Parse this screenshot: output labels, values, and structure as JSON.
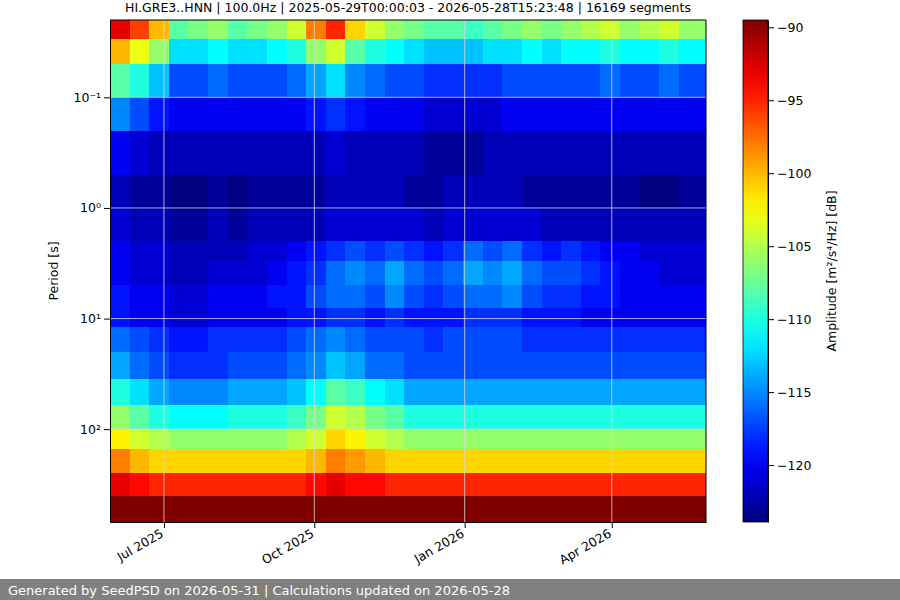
{
  "chart_data": {
    "type": "heatmap",
    "title": "HI.GRE3..HNN | 100.0Hz | 2025-05-29T00:00:03 - 2026-05-28T15:23:48 | 16169 segments",
    "y_label": "Period [s]",
    "colorbar_label": "Amplitude [m²/s⁴/Hz] [dB]",
    "footer": "Generated by SeedPSD on 2026-05-31 | Calculations updated on 2026-05-28",
    "log": "y",
    "grid": true,
    "xlim": [
      "2025-05-29T00:00:03",
      "2026-05-28T15:23:48"
    ],
    "xticks": [
      {
        "value": "2025-07-01",
        "label": "Jul 2025"
      },
      {
        "value": "2025-10-01",
        "label": "Oct 2025"
      },
      {
        "value": "2026-01-01",
        "label": "Jan 2026"
      },
      {
        "value": "2026-04-01",
        "label": "Apr 2026"
      }
    ],
    "ylim": [
      0.02,
      690
    ],
    "yticks": [
      {
        "value": 0.1,
        "label": "10⁻¹"
      },
      {
        "value": 1,
        "label": "10⁰"
      },
      {
        "value": 10,
        "label": "10¹"
      },
      {
        "value": 100,
        "label": "10²"
      }
    ],
    "clim": [
      -123.9,
      -89.5
    ],
    "cticks": [
      {
        "value": -120,
        "label": "−120"
      },
      {
        "value": -115,
        "label": "−115"
      },
      {
        "value": -110,
        "label": "−110"
      },
      {
        "value": -105,
        "label": "−105"
      },
      {
        "value": -100,
        "label": "−100"
      },
      {
        "value": -95,
        "label": "−95"
      },
      {
        "value": -90,
        "label": "−90"
      }
    ],
    "x_edges": [
      "2025-05-29T00:00:03",
      "2025-06-10",
      "2025-06-22",
      "2025-07-04",
      "2025-07-16",
      "2025-07-28",
      "2025-08-09",
      "2025-08-21",
      "2025-09-02",
      "2025-09-14",
      "2025-09-26",
      "2025-10-08",
      "2025-10-20",
      "2025-11-01",
      "2025-11-13",
      "2025-11-25",
      "2025-12-07",
      "2025-12-19",
      "2025-12-31",
      "2026-01-12",
      "2026-01-24",
      "2026-02-05",
      "2026-02-17",
      "2026-03-01",
      "2026-03-13",
      "2026-03-25",
      "2026-04-06",
      "2026-04-18",
      "2026-04-30",
      "2026-05-12",
      "2026-05-28T15:23:48"
    ],
    "y_edges": [
      0.02,
      0.03,
      0.05,
      0.1,
      0.2,
      0.5,
      1,
      2,
      3,
      5,
      8,
      12,
      20,
      35,
      60,
      100,
      150,
      250,
      400,
      690
    ],
    "cells": [
      [
        -93,
        -96,
        -100,
        -108,
        -107,
        -106,
        -108,
        -107,
        -106,
        -104,
        -98,
        -95,
        -101,
        -104,
        -106,
        -107,
        -108,
        -108,
        -109,
        -108,
        -107,
        -106,
        -107,
        -106,
        -105,
        -104,
        -106,
        -105,
        -104,
        -106
      ],
      [
        -100,
        -103,
        -106,
        -112,
        -112,
        -111,
        -112,
        -112,
        -111,
        -110,
        -106,
        -104,
        -108,
        -110,
        -111,
        -112,
        -113,
        -113,
        -113,
        -112,
        -112,
        -111,
        -112,
        -111,
        -111,
        -110,
        -111,
        -111,
        -110,
        -111
      ],
      [
        -108,
        -110,
        -113,
        -117,
        -117,
        -116,
        -117,
        -117,
        -117,
        -116,
        -114,
        -112,
        -115,
        -116,
        -117,
        -117,
        -118,
        -118,
        -118,
        -118,
        -117,
        -117,
        -117,
        -117,
        -117,
        -116,
        -117,
        -117,
        -116,
        -117
      ],
      [
        -115,
        -117,
        -119,
        -120,
        -120,
        -120,
        -120,
        -120,
        -120,
        -120,
        -119,
        -118,
        -119,
        -120,
        -120,
        -120,
        -121,
        -121,
        -121,
        -121,
        -120,
        -120,
        -120,
        -120,
        -120,
        -120,
        -120,
        -120,
        -120,
        -120
      ],
      [
        -120,
        -121,
        -122,
        -122,
        -122,
        -122,
        -122,
        -122,
        -122,
        -122,
        -122,
        -121,
        -122,
        -122,
        -122,
        -122,
        -123,
        -123,
        -123,
        -122,
        -122,
        -122,
        -122,
        -122,
        -122,
        -122,
        -122,
        -122,
        -122,
        -122
      ],
      [
        -122,
        -123,
        -123,
        -124,
        -124,
        -123,
        -124,
        -123,
        -123,
        -123,
        -123,
        -122,
        -122,
        -122,
        -122,
        -123,
        -123,
        -122,
        -122,
        -122,
        -122,
        -123,
        -123,
        -123,
        -123,
        -123,
        -123,
        -124,
        -124,
        -123
      ],
      [
        -121,
        -122,
        -122,
        -123,
        -123,
        -122,
        -123,
        -122,
        -122,
        -122,
        -122,
        -121,
        -121,
        -121,
        -121,
        -121,
        -122,
        -121,
        -121,
        -121,
        -121,
        -121,
        -122,
        -122,
        -122,
        -122,
        -122,
        -122,
        -122,
        -122
      ],
      [
        -120,
        -121,
        -121,
        -122,
        -122,
        -122,
        -122,
        -121,
        -121,
        -120,
        -119,
        -118,
        -117,
        -118,
        -117,
        -118,
        -119,
        -118,
        -116,
        -117,
        -116,
        -118,
        -119,
        -118,
        -119,
        -120,
        -120,
        -121,
        -121,
        -121
      ],
      [
        -120,
        -121,
        -121,
        -122,
        -122,
        -121,
        -121,
        -121,
        -120,
        -119,
        -118,
        -116,
        -115,
        -116,
        -114,
        -116,
        -117,
        -116,
        -114,
        -115,
        -114,
        -116,
        -117,
        -117,
        -118,
        -119,
        -120,
        -120,
        -121,
        -121
      ],
      [
        -119,
        -120,
        -120,
        -121,
        -121,
        -120,
        -120,
        -120,
        -119,
        -119,
        -117,
        -116,
        -116,
        -117,
        -115,
        -117,
        -118,
        -117,
        -116,
        -116,
        -115,
        -117,
        -118,
        -118,
        -119,
        -119,
        -120,
        -120,
        -120,
        -120
      ],
      [
        -119,
        -120,
        -120,
        -121,
        -121,
        -120,
        -120,
        -120,
        -120,
        -119,
        -119,
        -118,
        -118,
        -119,
        -118,
        -119,
        -119,
        -119,
        -118,
        -118,
        -118,
        -119,
        -119,
        -119,
        -120,
        -120,
        -120,
        -120,
        -120,
        -120
      ],
      [
        -116,
        -117,
        -118,
        -119,
        -119,
        -118,
        -118,
        -118,
        -118,
        -117,
        -116,
        -115,
        -116,
        -117,
        -117,
        -117,
        -118,
        -117,
        -117,
        -117,
        -117,
        -118,
        -118,
        -118,
        -118,
        -118,
        -118,
        -118,
        -118,
        -118
      ],
      [
        -114,
        -116,
        -117,
        -118,
        -118,
        -118,
        -117,
        -117,
        -117,
        -116,
        -115,
        -113,
        -114,
        -116,
        -116,
        -117,
        -117,
        -117,
        -117,
        -117,
        -117,
        -117,
        -117,
        -117,
        -117,
        -117,
        -117,
        -117,
        -117,
        -117
      ],
      [
        -110,
        -112,
        -114,
        -115,
        -115,
        -115,
        -114,
        -114,
        -114,
        -113,
        -111,
        -108,
        -109,
        -111,
        -112,
        -114,
        -114,
        -114,
        -114,
        -114,
        -114,
        -114,
        -114,
        -114,
        -114,
        -114,
        -114,
        -114,
        -114,
        -114
      ],
      [
        -106,
        -108,
        -110,
        -111,
        -111,
        -111,
        -110,
        -110,
        -110,
        -109,
        -107,
        -104,
        -105,
        -107,
        -108,
        -110,
        -110,
        -110,
        -110,
        -110,
        -110,
        -110,
        -110,
        -110,
        -110,
        -110,
        -110,
        -110,
        -110,
        -110
      ],
      [
        -102,
        -104,
        -105,
        -106,
        -106,
        -106,
        -106,
        -106,
        -106,
        -105,
        -104,
        -101,
        -102,
        -104,
        -105,
        -106,
        -106,
        -106,
        -106,
        -106,
        -106,
        -106,
        -106,
        -106,
        -106,
        -106,
        -106,
        -106,
        -106,
        -106
      ],
      [
        -98,
        -100,
        -101,
        -101,
        -101,
        -101,
        -101,
        -101,
        -101,
        -101,
        -100,
        -98,
        -99,
        -100,
        -101,
        -101,
        -101,
        -101,
        -101,
        -101,
        -101,
        -101,
        -101,
        -101,
        -101,
        -101,
        -101,
        -101,
        -101,
        -101
      ],
      [
        -93,
        -94,
        -95,
        -95,
        -95,
        -95,
        -95,
        -95,
        -95,
        -95,
        -94,
        -93,
        -94,
        -94,
        -95,
        -95,
        -95,
        -95,
        -95,
        -95,
        -95,
        -95,
        -95,
        -95,
        -95,
        -95,
        -95,
        -95,
        -95,
        -95
      ],
      [
        -89,
        -89,
        -89,
        -89,
        -89,
        -89,
        -89,
        -89,
        -89,
        -89,
        -89,
        -89,
        -89,
        -89,
        -89,
        -89,
        -89,
        -89,
        -89,
        -89,
        -89,
        -89,
        -89,
        -89,
        -89,
        -89,
        -89,
        -89,
        -89,
        -89
      ]
    ]
  }
}
